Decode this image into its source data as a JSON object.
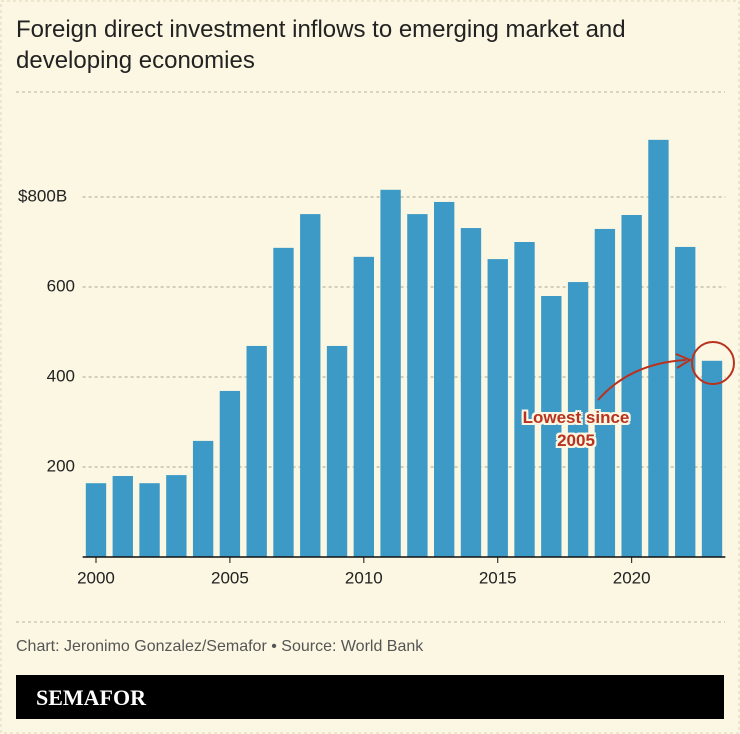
{
  "chart_data": {
    "type": "bar",
    "title": "Foreign direct investment inflows to emerging market and developing economies",
    "x": [
      2000,
      2001,
      2002,
      2003,
      2004,
      2005,
      2006,
      2007,
      2008,
      2009,
      2010,
      2011,
      2012,
      2013,
      2014,
      2015,
      2016,
      2017,
      2018,
      2019,
      2020,
      2021,
      2022,
      2023
    ],
    "values": [
      164,
      180,
      164,
      182,
      258,
      369,
      469,
      687,
      762,
      469,
      667,
      816,
      762,
      789,
      731,
      662,
      700,
      580,
      611,
      729,
      760,
      927,
      689,
      436
    ],
    "color": "#3d9ac6",
    "xlim": [
      1999.5,
      2023.5
    ],
    "xticks": [
      2000,
      2005,
      2010,
      2015,
      2020
    ],
    "ylim": [
      0,
      1000
    ],
    "yticks": [
      200,
      400,
      600,
      {
        "value": 800,
        "label": "$800B"
      }
    ],
    "grid": true,
    "annotation": "Lowest since 2005",
    "source": "Chart: Jeronimo Gonzalez/Semafor • Source: World Bank",
    "brand": "SEMAFOR"
  }
}
